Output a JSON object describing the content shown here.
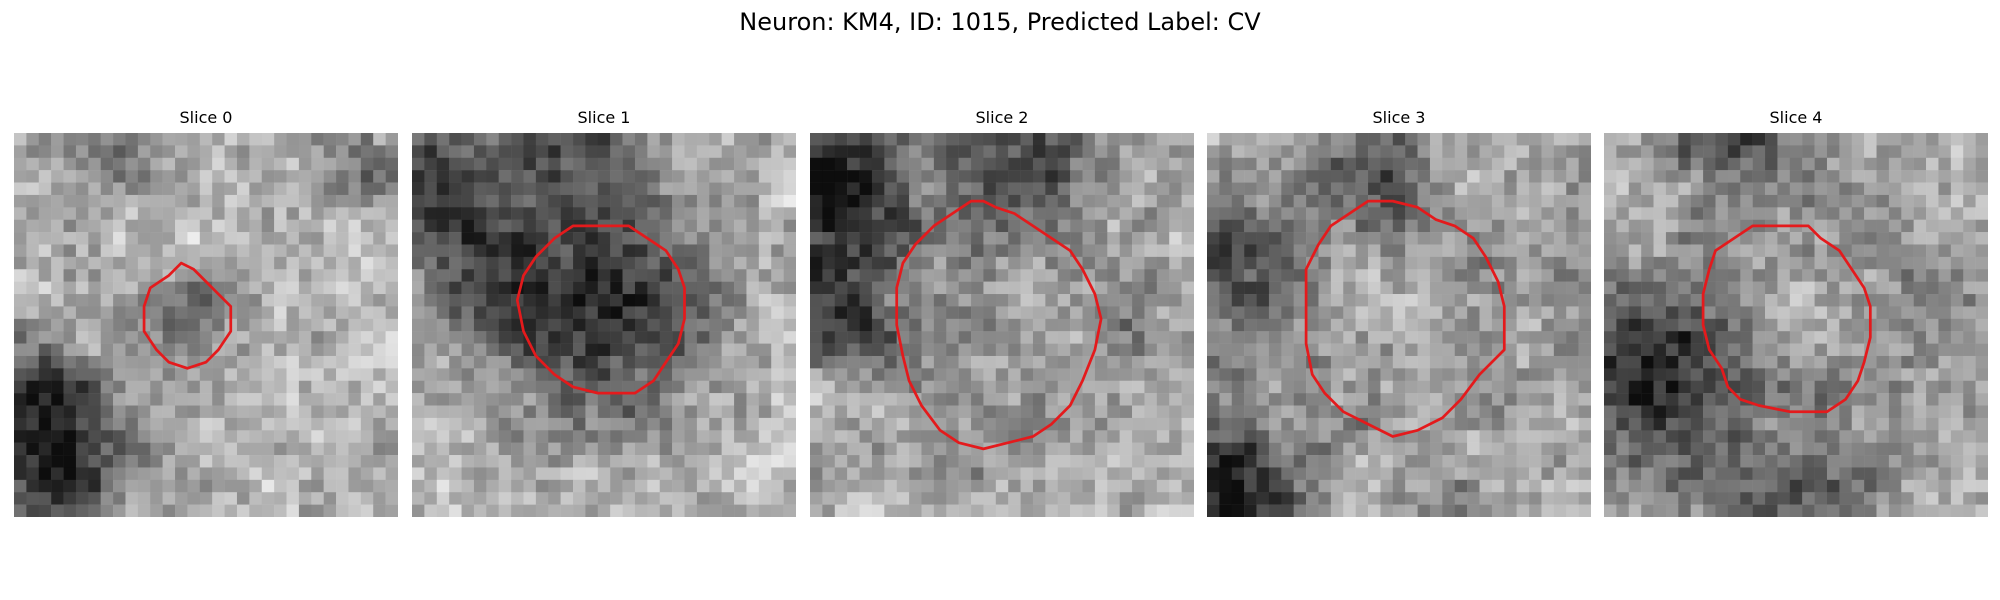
{
  "figure": {
    "title": "Neuron: KM4, ID: 1015, Predicted Label: CV",
    "contour_color": "#e41a1c",
    "grid_size": 31,
    "panels": [
      {
        "title": "Slice 0",
        "contour": [
          [
            13.5,
            10.5
          ],
          [
            12.5,
            11.5
          ],
          [
            11,
            12.5
          ],
          [
            10.5,
            14
          ],
          [
            10.5,
            16
          ],
          [
            11.5,
            17.5
          ],
          [
            12.5,
            18.5
          ],
          [
            14,
            19
          ],
          [
            15.5,
            18.5
          ],
          [
            16.5,
            17.5
          ],
          [
            17.5,
            16
          ],
          [
            17.5,
            14
          ],
          [
            16.5,
            13
          ],
          [
            15.5,
            12
          ],
          [
            14.5,
            11
          ]
        ]
      },
      {
        "title": "Slice 1",
        "contour": [
          [
            13,
            7.5
          ],
          [
            11.5,
            8.5
          ],
          [
            10,
            10
          ],
          [
            9,
            11.5
          ],
          [
            8.5,
            13.5
          ],
          [
            9,
            16
          ],
          [
            10,
            18
          ],
          [
            11.5,
            19.5
          ],
          [
            13,
            20.5
          ],
          [
            15,
            21
          ],
          [
            18,
            21
          ],
          [
            19.5,
            20
          ],
          [
            20.5,
            18.5
          ],
          [
            21.5,
            17
          ],
          [
            22,
            15
          ],
          [
            22,
            12.5
          ],
          [
            21.5,
            11
          ],
          [
            20.5,
            9.5
          ],
          [
            19,
            8.5
          ],
          [
            17.5,
            7.5
          ],
          [
            15,
            7.5
          ]
        ]
      },
      {
        "title": "Slice 2",
        "contour": [
          [
            13,
            5.5
          ],
          [
            11.5,
            6.5
          ],
          [
            10,
            7.5
          ],
          [
            8.5,
            9
          ],
          [
            7.5,
            10.5
          ],
          [
            7,
            12.5
          ],
          [
            7,
            15.5
          ],
          [
            7.5,
            18
          ],
          [
            8,
            20
          ],
          [
            9,
            22
          ],
          [
            10.5,
            24
          ],
          [
            12,
            25
          ],
          [
            14,
            25.5
          ],
          [
            16,
            25
          ],
          [
            18,
            24.5
          ],
          [
            19.5,
            23.5
          ],
          [
            21,
            22
          ],
          [
            22,
            20
          ],
          [
            23,
            17.5
          ],
          [
            23.5,
            15
          ],
          [
            23,
            13
          ],
          [
            22,
            11
          ],
          [
            21,
            9.5
          ],
          [
            19.5,
            8.5
          ],
          [
            18,
            7.5
          ],
          [
            16.5,
            6.5
          ],
          [
            15,
            6
          ],
          [
            14,
            5.5
          ]
        ]
      },
      {
        "title": "Slice 3",
        "contour": [
          [
            13,
            5.5
          ],
          [
            11.5,
            6.5
          ],
          [
            10,
            7.5
          ],
          [
            9,
            9
          ],
          [
            8,
            11
          ],
          [
            8,
            14
          ],
          [
            8,
            17
          ],
          [
            8.5,
            19.5
          ],
          [
            9.5,
            21
          ],
          [
            11,
            22.5
          ],
          [
            13,
            23.5
          ],
          [
            15,
            24.5
          ],
          [
            17,
            24
          ],
          [
            19,
            23
          ],
          [
            20.5,
            21.5
          ],
          [
            22,
            19.5
          ],
          [
            24,
            17.5
          ],
          [
            24,
            14
          ],
          [
            23.5,
            12
          ],
          [
            22.5,
            10
          ],
          [
            21.5,
            8.5
          ],
          [
            20,
            7.5
          ],
          [
            18.5,
            7
          ],
          [
            17,
            6
          ],
          [
            15,
            5.5
          ]
        ]
      },
      {
        "title": "Slice 4",
        "contour": [
          [
            12,
            7.5
          ],
          [
            10.5,
            8.5
          ],
          [
            9,
            9.5
          ],
          [
            8.5,
            11
          ],
          [
            8,
            13
          ],
          [
            8,
            15.5
          ],
          [
            8.5,
            17.5
          ],
          [
            9.5,
            19
          ],
          [
            10,
            20.5
          ],
          [
            11,
            21.5
          ],
          [
            12.5,
            22
          ],
          [
            15,
            22.5
          ],
          [
            18,
            22.5
          ],
          [
            19.5,
            21.5
          ],
          [
            20.5,
            20
          ],
          [
            21,
            18.5
          ],
          [
            21.5,
            16.5
          ],
          [
            21.5,
            14
          ],
          [
            21,
            12.5
          ],
          [
            20,
            11
          ],
          [
            19,
            9.5
          ],
          [
            17.5,
            8.5
          ],
          [
            16.5,
            7.5
          ],
          [
            14.5,
            7.5
          ]
        ]
      }
    ]
  }
}
